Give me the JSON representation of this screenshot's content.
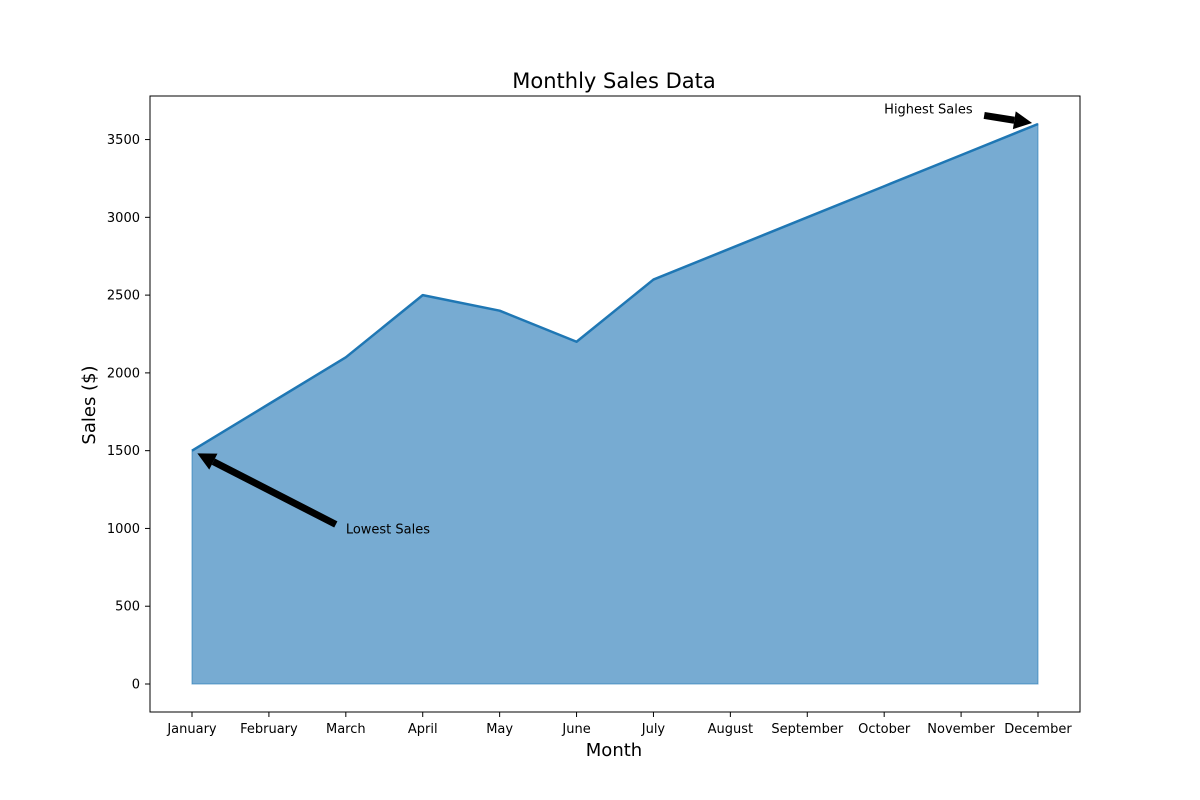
{
  "chart_data": {
    "type": "area",
    "title": "Monthly Sales Data",
    "xlabel": "Month",
    "ylabel": "Sales ($)",
    "categories": [
      "January",
      "February",
      "March",
      "April",
      "May",
      "June",
      "July",
      "August",
      "September",
      "October",
      "November",
      "December"
    ],
    "values": [
      1500,
      1800,
      2100,
      2500,
      2400,
      2200,
      2600,
      2800,
      3000,
      3200,
      3400,
      3600
    ],
    "ylim": [
      -180,
      3780
    ],
    "yticks": [
      0,
      500,
      1000,
      1500,
      2000,
      2500,
      3000,
      3500
    ],
    "grid": false,
    "legend": "none",
    "colors": {
      "fill": "#77abd2",
      "line": "#1f77b4",
      "text": "#000000",
      "arrow": "#000000"
    },
    "annotations": [
      {
        "text": "Lowest Sales",
        "target_category": "January",
        "target_value": 1500,
        "text_category_pos": 2.0,
        "text_value_pos": 1000
      },
      {
        "text": "Highest Sales",
        "target_category": "December",
        "target_value": 3600,
        "text_category_pos": 9.0,
        "text_value_pos": 3700
      }
    ]
  }
}
